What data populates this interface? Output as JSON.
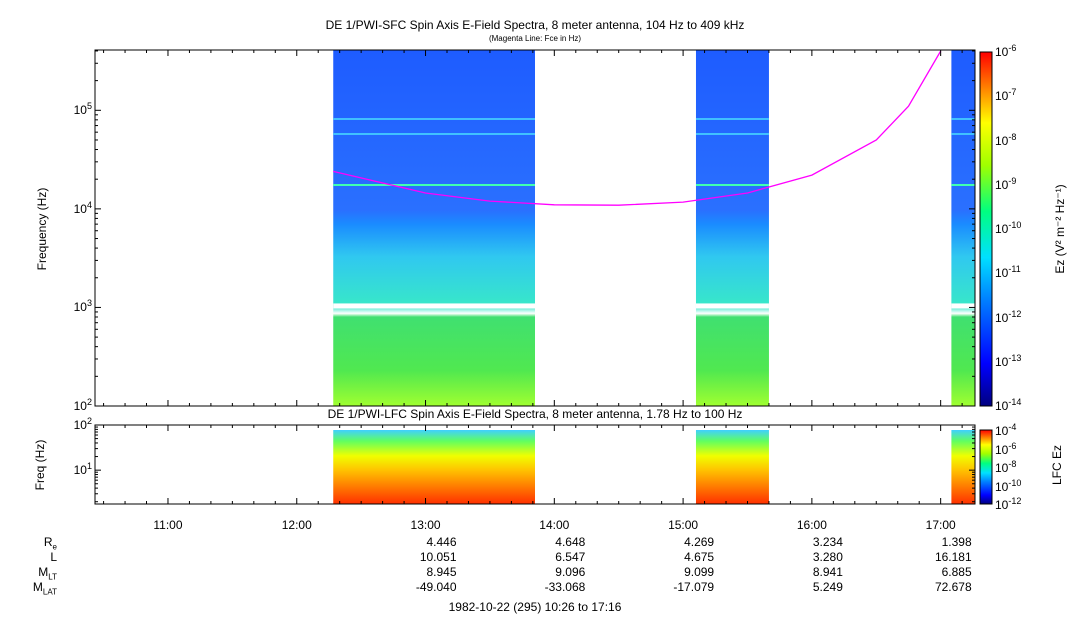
{
  "chart_data": [
    {
      "type": "heatmap",
      "title": "DE 1/PWI-SFC  Spin Axis E-Field Spectra, 8 meter antenna, 104 Hz to 409 kHz",
      "subtitle": "(Magenta Line: Fce in Hz)",
      "ylabel": "Frequency (Hz)",
      "yscale": "log",
      "ylim": [
        100,
        409000
      ],
      "yticks": [
        {
          "value": 100,
          "base": "10",
          "exp": "2"
        },
        {
          "value": 1000,
          "base": "10",
          "exp": "3"
        },
        {
          "value": 10000,
          "base": "10",
          "exp": "4"
        },
        {
          "value": 100000,
          "base": "10",
          "exp": "5"
        }
      ],
      "colorbar": {
        "label": "Ez (V² m⁻² Hz⁻¹)",
        "scale": "log",
        "range": [
          1e-14,
          1e-06
        ],
        "ticks": [
          {
            "base": "10",
            "exp": "-6"
          },
          {
            "base": "10",
            "exp": "-7"
          },
          {
            "base": "10",
            "exp": "-8"
          },
          {
            "base": "10",
            "exp": "-9"
          },
          {
            "base": "10",
            "exp": "-10"
          },
          {
            "base": "10",
            "exp": "-11"
          },
          {
            "base": "10",
            "exp": "-12"
          },
          {
            "base": "10",
            "exp": "-13"
          },
          {
            "base": "10",
            "exp": "-14"
          }
        ]
      },
      "data_segments": [
        {
          "start": "12:17",
          "end": "13:51"
        },
        {
          "start": "15:06",
          "end": "15:40"
        },
        {
          "start": "17:05",
          "end": "17:16"
        }
      ],
      "fce_line": [
        {
          "t": "12:17",
          "hz": 24000
        },
        {
          "t": "13:00",
          "hz": 14500
        },
        {
          "t": "13:30",
          "hz": 12000
        },
        {
          "t": "14:00",
          "hz": 11000
        },
        {
          "t": "14:30",
          "hz": 10900
        },
        {
          "t": "15:00",
          "hz": 11700
        },
        {
          "t": "15:30",
          "hz": 14500
        },
        {
          "t": "16:00",
          "hz": 22000
        },
        {
          "t": "16:30",
          "hz": 50000
        },
        {
          "t": "16:45",
          "hz": 110000
        },
        {
          "t": "17:00",
          "hz": 400000
        }
      ]
    },
    {
      "type": "heatmap",
      "title": "DE 1/PWI-LFC  Spin Axis E-Field Spectra, 8 meter antenna, 1.78 Hz to 100 Hz",
      "ylabel": "Freq (Hz)",
      "yscale": "log",
      "ylim": [
        1.78,
        100
      ],
      "yticks": [
        {
          "value": 10,
          "base": "10",
          "exp": "1"
        },
        {
          "value": 100,
          "base": "10",
          "exp": "2"
        }
      ],
      "colorbar": {
        "label": "LFC Ez",
        "scale": "log",
        "range": [
          1e-12,
          0.0001
        ],
        "ticks": [
          {
            "base": "10",
            "exp": "-4"
          },
          {
            "base": "10",
            "exp": "-6"
          },
          {
            "base": "10",
            "exp": "-8"
          },
          {
            "base": "10",
            "exp": "-10"
          },
          {
            "base": "10",
            "exp": "-12"
          }
        ]
      }
    }
  ],
  "xaxis": {
    "ticks": [
      "11:00",
      "12:00",
      "13:00",
      "14:00",
      "15:00",
      "16:00",
      "17:00"
    ],
    "range": [
      "10:26",
      "17:16"
    ]
  },
  "ephemeris": {
    "rows": [
      {
        "label": "R",
        "sub": "e",
        "values": [
          "4.446",
          "4.648",
          "4.269",
          "3.234",
          "1.398"
        ]
      },
      {
        "label": "L",
        "sub": "",
        "values": [
          "10.051",
          "6.547",
          "4.675",
          "3.280",
          "16.181"
        ]
      },
      {
        "label": "M",
        "sub": "LT",
        "values": [
          "8.945",
          "9.096",
          "9.099",
          "8.941",
          "6.885"
        ]
      },
      {
        "label": "M",
        "sub": "LAT",
        "values": [
          "-49.040",
          "-33.068",
          "-17.079",
          "5.249",
          "72.678"
        ]
      }
    ],
    "times": [
      "13:00",
      "14:00",
      "15:00",
      "16:00",
      "17:00"
    ]
  },
  "footer": "1982-10-22 (295) 10:26 to 17:16",
  "colors": {
    "fce": "#ff00ff"
  }
}
